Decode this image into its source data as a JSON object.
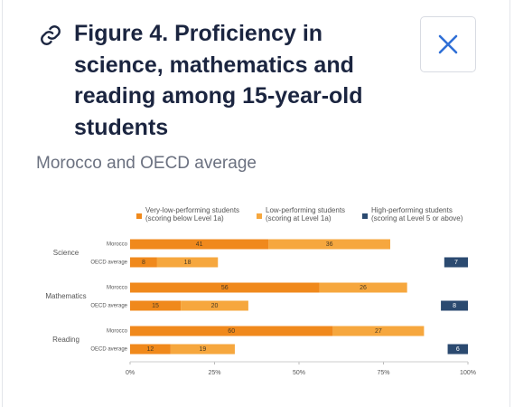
{
  "header": {
    "title": "Figure 4. Proficiency in science, mathematics and reading among 15-year-old students",
    "subtitle": "Morocco and OECD average"
  },
  "chart_data": {
    "type": "bar",
    "orientation": "horizontal",
    "stacked": true,
    "groups": [
      "Science",
      "Mathematics",
      "Reading"
    ],
    "categories": [
      "Morocco",
      "OECD average",
      "Morocco",
      "OECD average",
      "Morocco",
      "OECD average"
    ],
    "series": [
      {
        "name": "Very-low-performing students (scoring below Level 1a)",
        "color": "#f0891c",
        "values": [
          41,
          8,
          56,
          15,
          60,
          12
        ]
      },
      {
        "name": "Low-performing students (scoring at Level 1a)",
        "color": "#f6a73e",
        "values": [
          36,
          18,
          26,
          20,
          27,
          19
        ]
      },
      {
        "name": "High-performing students (scoring at Level 5 or above)",
        "color": "#2b4a70",
        "align": "end",
        "values": [
          0,
          7,
          0,
          8,
          0,
          6
        ]
      }
    ],
    "xlim": [
      0,
      100
    ],
    "xticks": [
      {
        "value": 0,
        "label": "0%"
      },
      {
        "value": 25,
        "label": "25%"
      },
      {
        "value": 50,
        "label": "50%"
      },
      {
        "value": 75,
        "label": "75%"
      },
      {
        "value": 100,
        "label": "100%"
      }
    ]
  }
}
